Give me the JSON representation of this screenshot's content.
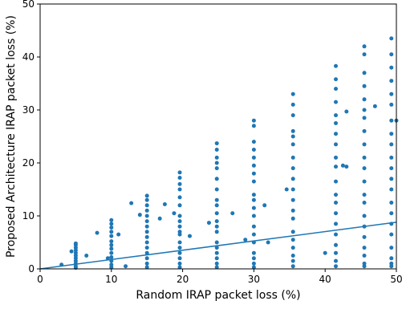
{
  "chart_data": {
    "type": "scatter",
    "xlabel": "Random IRAP packet loss (%)",
    "ylabel": "Proposed Architecture IRAP packet loss (%)",
    "xlim": [
      0,
      50
    ],
    "ylim": [
      0,
      50
    ],
    "xticks": [
      0,
      10,
      20,
      30,
      40,
      50
    ],
    "yticks": [
      0,
      10,
      20,
      30,
      40,
      50
    ],
    "series": [
      {
        "type": "scatter",
        "color": "#1f77b4",
        "x": [
          5,
          5,
          5,
          5,
          5,
          5,
          5,
          5,
          5,
          5,
          5,
          3,
          4.4,
          6.5,
          10,
          10,
          10,
          10,
          10,
          10,
          10,
          10,
          10,
          10,
          10,
          10,
          10,
          8,
          11,
          9.5,
          12.8,
          12,
          15,
          15,
          15,
          15,
          15,
          15,
          15,
          15,
          15,
          15,
          15,
          15,
          15,
          15,
          15,
          14,
          17.5,
          16.8,
          19.6,
          19.6,
          19.6,
          19.6,
          19.6,
          19.6,
          19.6,
          19.6,
          19.6,
          19.6,
          19.6,
          19.6,
          19.6,
          19.6,
          19.6,
          19.6,
          19.6,
          18.8,
          21,
          24.8,
          24.8,
          24.8,
          24.8,
          24.8,
          24.8,
          24.8,
          24.8,
          24.8,
          24.8,
          24.8,
          24.8,
          24.8,
          24.8,
          24.8,
          24.8,
          24.8,
          24.8,
          24.8,
          23.7,
          27,
          30,
          30,
          30,
          30,
          30,
          30,
          30,
          30,
          30,
          30,
          30,
          30,
          30,
          30,
          30,
          30,
          30,
          30,
          30,
          28.8,
          32,
          31.5,
          35.5,
          35.5,
          35.5,
          35.5,
          35.5,
          35.5,
          35.5,
          35.5,
          35.5,
          35.5,
          35.5,
          35.5,
          35.5,
          35.5,
          35.5,
          35.5,
          35.5,
          35.5,
          35.5,
          34.6,
          40,
          41.5,
          41.5,
          41.5,
          41.5,
          41.5,
          41.5,
          41.5,
          41.5,
          41.5,
          41.5,
          41.5,
          41.5,
          41.5,
          41.5,
          41.5,
          41.5,
          41.5,
          41.5,
          41.5,
          41.5,
          43,
          43,
          42.5,
          45.5,
          45.5,
          45.5,
          45.5,
          45.5,
          45.5,
          45.5,
          45.5,
          45.5,
          45.5,
          45.5,
          45.5,
          45.5,
          45.5,
          45.5,
          45.5,
          45.5,
          45.5,
          45.5,
          45.5,
          45.5,
          47,
          49.3,
          49.3,
          49.3,
          49.3,
          49.3,
          49.3,
          49.3,
          49.3,
          49.3,
          49.3,
          49.3,
          49.3,
          49.3,
          49.3,
          49.3,
          49.3,
          49.3,
          49.3,
          49.3,
          49.3,
          49.3,
          50
        ],
        "values": [
          0.2,
          0.5,
          1,
          1.5,
          2,
          2.5,
          3,
          3.5,
          4,
          4.5,
          4.8,
          0.8,
          3.3,
          2.5,
          9.2,
          8.5,
          7.8,
          7,
          6.2,
          5.2,
          4.5,
          3.8,
          3,
          2.2,
          1.5,
          0.8,
          0.3,
          6.8,
          6.5,
          2,
          12.4,
          0.5,
          13.8,
          13,
          12,
          11,
          10,
          9,
          8,
          7,
          6,
          5,
          4,
          3,
          2,
          1,
          0.3,
          10.2,
          12.2,
          9.5,
          18.2,
          17.2,
          16,
          15,
          13.5,
          12,
          10,
          9,
          8,
          7,
          6.5,
          5,
          4,
          3,
          2,
          1,
          0.3,
          10.5,
          6.2,
          23.7,
          22.5,
          21,
          20,
          19,
          17,
          15,
          13,
          12,
          10.5,
          9,
          8,
          7,
          5,
          4,
          3,
          2,
          1,
          0.3,
          8.7,
          10.5,
          28,
          27,
          24,
          22.5,
          21,
          19.5,
          18,
          16.5,
          14,
          13,
          11.5,
          10,
          8,
          6.5,
          5,
          3,
          2,
          1,
          0.3,
          5.5,
          5,
          12,
          33,
          31,
          29,
          26,
          25,
          23.5,
          21,
          19,
          17,
          15,
          13,
          11,
          9.5,
          7,
          5.5,
          4,
          2.5,
          1.5,
          0.5,
          15,
          3,
          38.3,
          35.8,
          34,
          31.5,
          29,
          27.5,
          25.5,
          23.5,
          21,
          19.3,
          16.5,
          14,
          12.5,
          10.5,
          8.5,
          6.5,
          4.5,
          3,
          1.5,
          0.5,
          29.7,
          19.3,
          19.5,
          42,
          40.5,
          37,
          34.5,
          32,
          30,
          28.5,
          26,
          23.5,
          21,
          19,
          16.5,
          14,
          12.5,
          10,
          8,
          6,
          4,
          2.5,
          1,
          0.5,
          30.7,
          43.5,
          40.5,
          38,
          35.5,
          33,
          31,
          28,
          25.5,
          23.5,
          21,
          19,
          17,
          15,
          12.5,
          10.5,
          8.5,
          6.5,
          4,
          2,
          1,
          0.5,
          28
        ]
      },
      {
        "type": "line",
        "color": "#1f77b4",
        "x": [
          0,
          50
        ],
        "values": [
          0,
          8.8
        ]
      }
    ]
  }
}
